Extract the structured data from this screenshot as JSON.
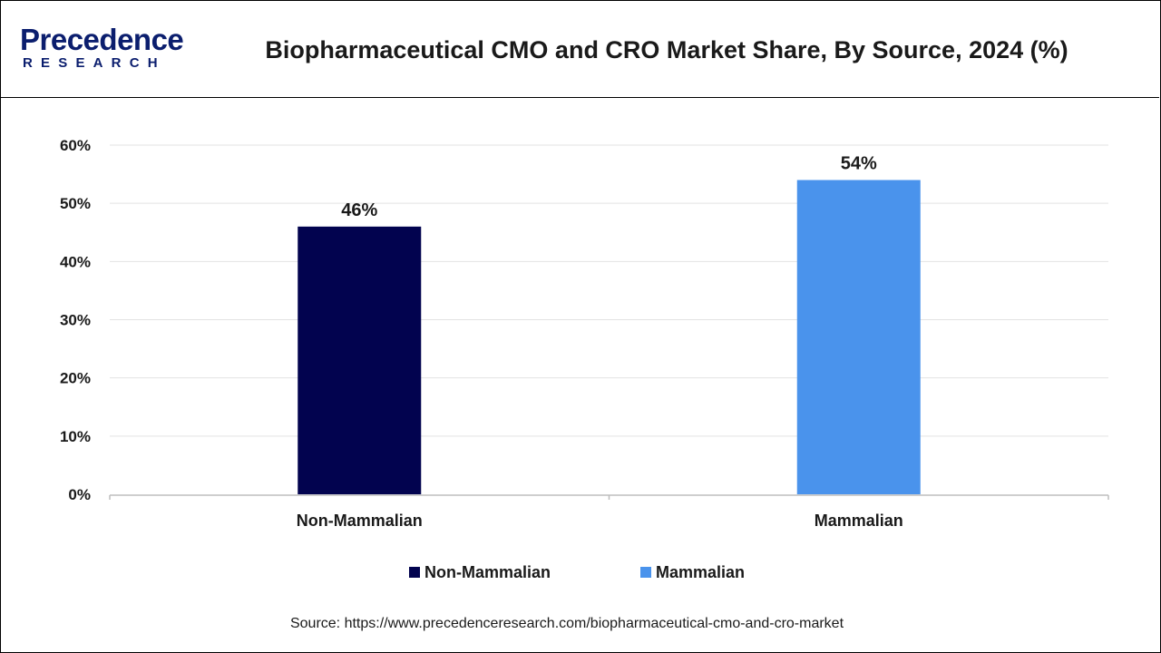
{
  "brand": {
    "name": "Precedence",
    "sub": "RESEARCH",
    "color": "#0b1e6e"
  },
  "chart_data": {
    "type": "bar",
    "title": "Biopharmaceutical CMO and CRO Market Share, By Source, 2024 (%)",
    "categories": [
      "Non-Mammalian",
      "Mammalian"
    ],
    "values": [
      46,
      54
    ],
    "data_labels": [
      "46%",
      "54%"
    ],
    "colors": [
      "#02034f",
      "#4a93ec"
    ],
    "xlabel": "",
    "ylabel": "",
    "ylim": [
      0,
      60
    ],
    "yticks": [
      0,
      10,
      20,
      30,
      40,
      50,
      60
    ],
    "ytick_labels": [
      "0%",
      "10%",
      "20%",
      "30%",
      "40%",
      "50%",
      "60%"
    ],
    "grid": true,
    "legend": {
      "placement": "bottom",
      "entries": [
        "Non-Mammalian",
        "Mammalian"
      ]
    }
  },
  "source": "Source: https://www.precedenceresearch.com/biopharmaceutical-cmo-and-cro-market"
}
